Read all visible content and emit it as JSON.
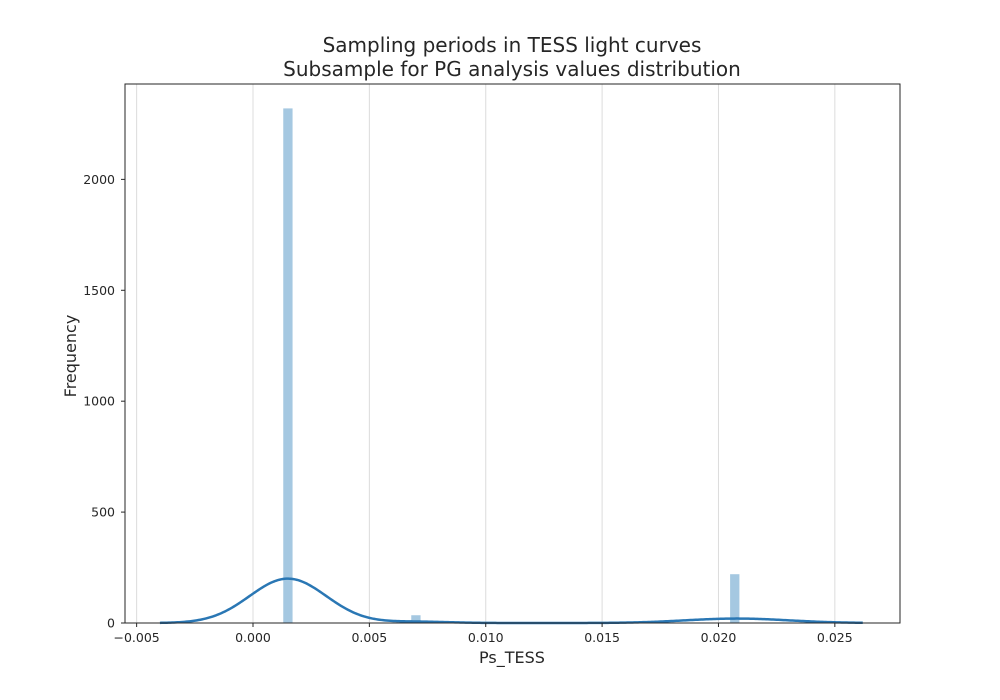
{
  "chart_data": {
    "type": "bar",
    "title_lines": [
      "Sampling periods in TESS light curves",
      "Subsample for PG analysis values distribution"
    ],
    "xlabel": "Ps_TESS",
    "ylabel": "Frequency",
    "xlim": [
      -0.0055,
      0.0278
    ],
    "ylim": [
      0,
      2430
    ],
    "x_ticks": [
      -0.005,
      0.0,
      0.005,
      0.01,
      0.015,
      0.02,
      0.025
    ],
    "x_tick_labels": [
      "−0.005",
      "0.000",
      "0.005",
      "0.010",
      "0.015",
      "0.020",
      "0.025"
    ],
    "y_ticks": [
      0,
      500,
      1000,
      1500,
      2000
    ],
    "y_tick_labels": [
      "0",
      "500",
      "1000",
      "1500",
      "2000"
    ],
    "grid": "vertical",
    "histogram": {
      "bin_width": 0.0004,
      "bins": [
        {
          "x0": 0.0013,
          "x1": 0.0017,
          "count": 2320
        },
        {
          "x0": 0.0068,
          "x1": 0.0072,
          "count": 35
        },
        {
          "x0": 0.0205,
          "x1": 0.0209,
          "count": 220
        }
      ],
      "color": "#a5c8e1"
    },
    "kde": {
      "x_range": [
        -0.004,
        0.0262
      ],
      "components": [
        {
          "mean": 0.0015,
          "sd": 0.00165,
          "peak": 200
        },
        {
          "mean": 0.007,
          "sd": 0.0014,
          "peak": 6
        },
        {
          "mean": 0.0208,
          "sd": 0.0022,
          "peak": 20
        }
      ],
      "color": "#2a77b4"
    }
  }
}
